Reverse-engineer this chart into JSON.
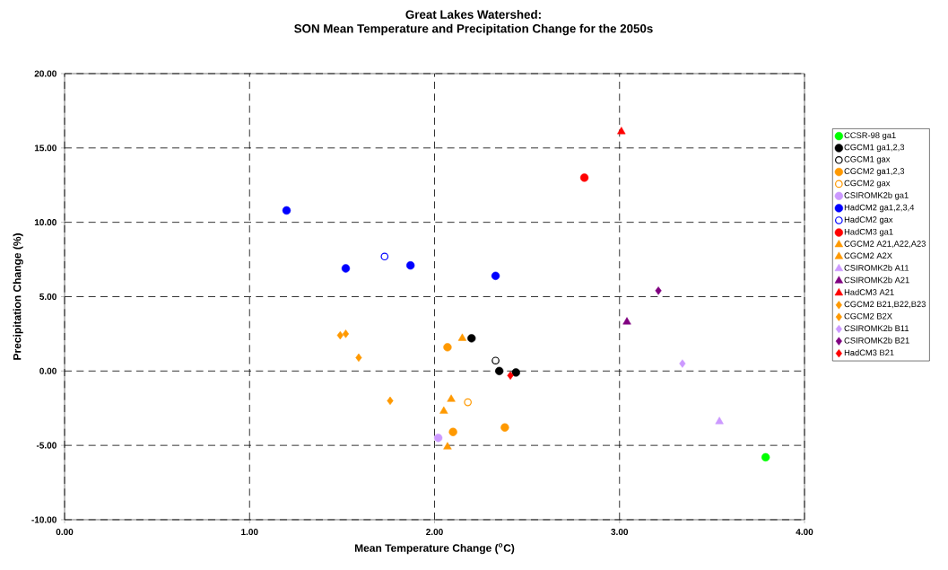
{
  "chart_data": {
    "type": "scatter",
    "title": "Great Lakes Watershed:",
    "subtitle": "SON Mean Temperature and Precipitation Change for the 2050s",
    "xlabel": "Mean Temperature Change ($^{o}$C)",
    "ylabel": "Precipitation Change (%)",
    "xlim": [
      0,
      4
    ],
    "ylim": [
      -10,
      20
    ],
    "xticks": [
      {
        "value": 0,
        "label": "0.00"
      },
      {
        "value": 1,
        "label": "1.00"
      },
      {
        "value": 2,
        "label": "2.00"
      },
      {
        "value": 3,
        "label": "3.00"
      },
      {
        "value": 4,
        "label": "4.00"
      }
    ],
    "yticks": [
      {
        "value": -10,
        "label": "-10.00"
      },
      {
        "value": -5,
        "label": "-5.00"
      },
      {
        "value": 0,
        "label": "0.00"
      },
      {
        "value": 5,
        "label": "5.00"
      },
      {
        "value": 10,
        "label": "10.00"
      },
      {
        "value": 15,
        "label": "15.00"
      },
      {
        "value": 20,
        "label": "20.00"
      }
    ],
    "grid": true,
    "line_style": "dashed",
    "legend": "right",
    "series": [
      {
        "name": "CCSR-98 ga1",
        "color": "#00ff00",
        "marker": "circle",
        "x": [
          3.79
        ],
        "values": [
          -5.8
        ]
      },
      {
        "name": "CGCM1 ga1,2,3",
        "color": "#000000",
        "marker": "circle",
        "x": [
          2.2,
          2.35,
          2.44
        ],
        "values": [
          2.2,
          0.0,
          -0.1
        ]
      },
      {
        "name": "CGCM1 gax",
        "color": "#000000",
        "marker": "open circle",
        "x": [
          2.33
        ],
        "values": [
          0.7
        ]
      },
      {
        "name": "CGCM2 ga1,2,3",
        "color": "#ff9900",
        "marker": "circle",
        "x": [
          2.07,
          2.1,
          2.38
        ],
        "values": [
          1.6,
          -4.1,
          -3.8
        ]
      },
      {
        "name": "CGCM2 gax",
        "color": "#ff9900",
        "marker": "open circle",
        "x": [
          2.18
        ],
        "values": [
          -2.1
        ]
      },
      {
        "name": "CSIROMK2b ga1",
        "color": "#cc99ff",
        "marker": "circle",
        "x": [
          2.02
        ],
        "values": [
          -4.5
        ]
      },
      {
        "name": "HadCM2 ga1,2,3,4",
        "color": "#0000ff",
        "marker": "circle",
        "x": [
          1.2,
          1.52,
          1.87,
          2.33
        ],
        "values": [
          10.8,
          6.9,
          7.1,
          6.4
        ]
      },
      {
        "name": "HadCM2 gax",
        "color": "#0000ff",
        "marker": "open circle",
        "x": [
          1.73
        ],
        "values": [
          7.7
        ]
      },
      {
        "name": "HadCM3 ga1",
        "color": "#ff0000",
        "marker": "circle",
        "x": [
          2.81
        ],
        "values": [
          13.0
        ]
      },
      {
        "name": "CGCM2 A21,A22,A23",
        "color": "#ff9900",
        "marker": "triangle",
        "x": [
          2.15,
          2.05,
          2.07
        ],
        "values": [
          2.2,
          -2.7,
          -5.1
        ]
      },
      {
        "name": "CGCM2 A2X",
        "color": "#ff9900",
        "marker": "triangle",
        "x": [
          2.09
        ],
        "values": [
          -1.9
        ]
      },
      {
        "name": "CSIROMK2b A11",
        "color": "#cc99ff",
        "marker": "triangle",
        "x": [
          3.54
        ],
        "values": [
          -3.4
        ]
      },
      {
        "name": "CSIROMK2b A21",
        "color": "#800080",
        "marker": "triangle",
        "x": [
          3.04
        ],
        "values": [
          3.3
        ]
      },
      {
        "name": "HadCM3 A21",
        "color": "#ff0000",
        "marker": "triangle",
        "x": [
          3.01
        ],
        "values": [
          16.1
        ]
      },
      {
        "name": "CGCM2 B21,B22,B23",
        "color": "#ff9900",
        "marker": "diamond",
        "x": [
          1.49,
          1.52,
          1.76
        ],
        "values": [
          2.4,
          2.5,
          -2.0
        ]
      },
      {
        "name": "CGCM2 B2X",
        "color": "#ff9900",
        "marker": "diamond",
        "x": [
          1.59
        ],
        "values": [
          0.9
        ]
      },
      {
        "name": "CSIROMK2b B11",
        "color": "#cc99ff",
        "marker": "diamond",
        "x": [
          3.34
        ],
        "values": [
          0.5
        ]
      },
      {
        "name": "CSIROMK2b B21",
        "color": "#800080",
        "marker": "diamond",
        "x": [
          3.21
        ],
        "values": [
          5.4
        ]
      },
      {
        "name": "HadCM3 B21",
        "color": "#ff0000",
        "marker": "diamond",
        "x": [
          2.41
        ],
        "values": [
          -0.3
        ]
      }
    ]
  }
}
